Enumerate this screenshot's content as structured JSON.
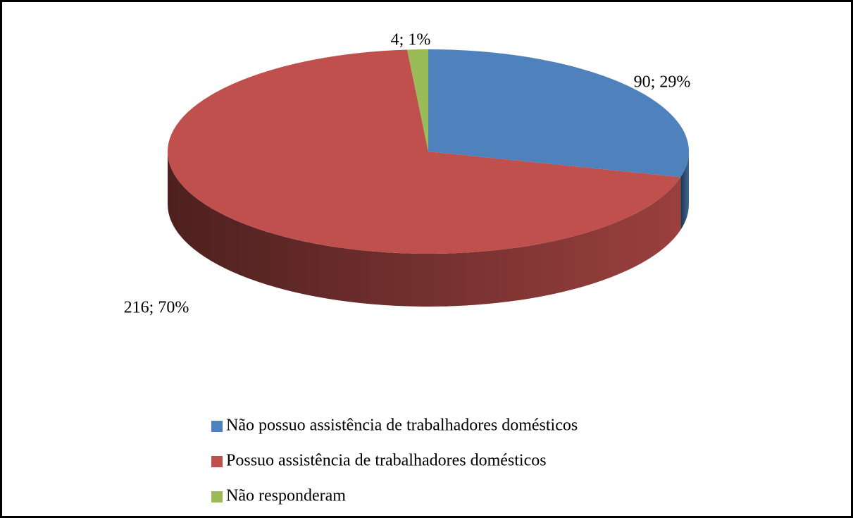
{
  "chart_data": {
    "type": "pie",
    "categories": [
      "Não possuo assistência de trabalhadores domésticos",
      "Possuo assistência de trabalhadores domésticos",
      "Não responderam"
    ],
    "values": [
      90,
      216,
      4
    ],
    "value_labels": [
      "90; 29%",
      "216; 70%",
      "4; 1%"
    ],
    "colors": [
      "#4f81bd",
      "#c0504d",
      "#9bbb59"
    ],
    "legend": "bottom"
  }
}
